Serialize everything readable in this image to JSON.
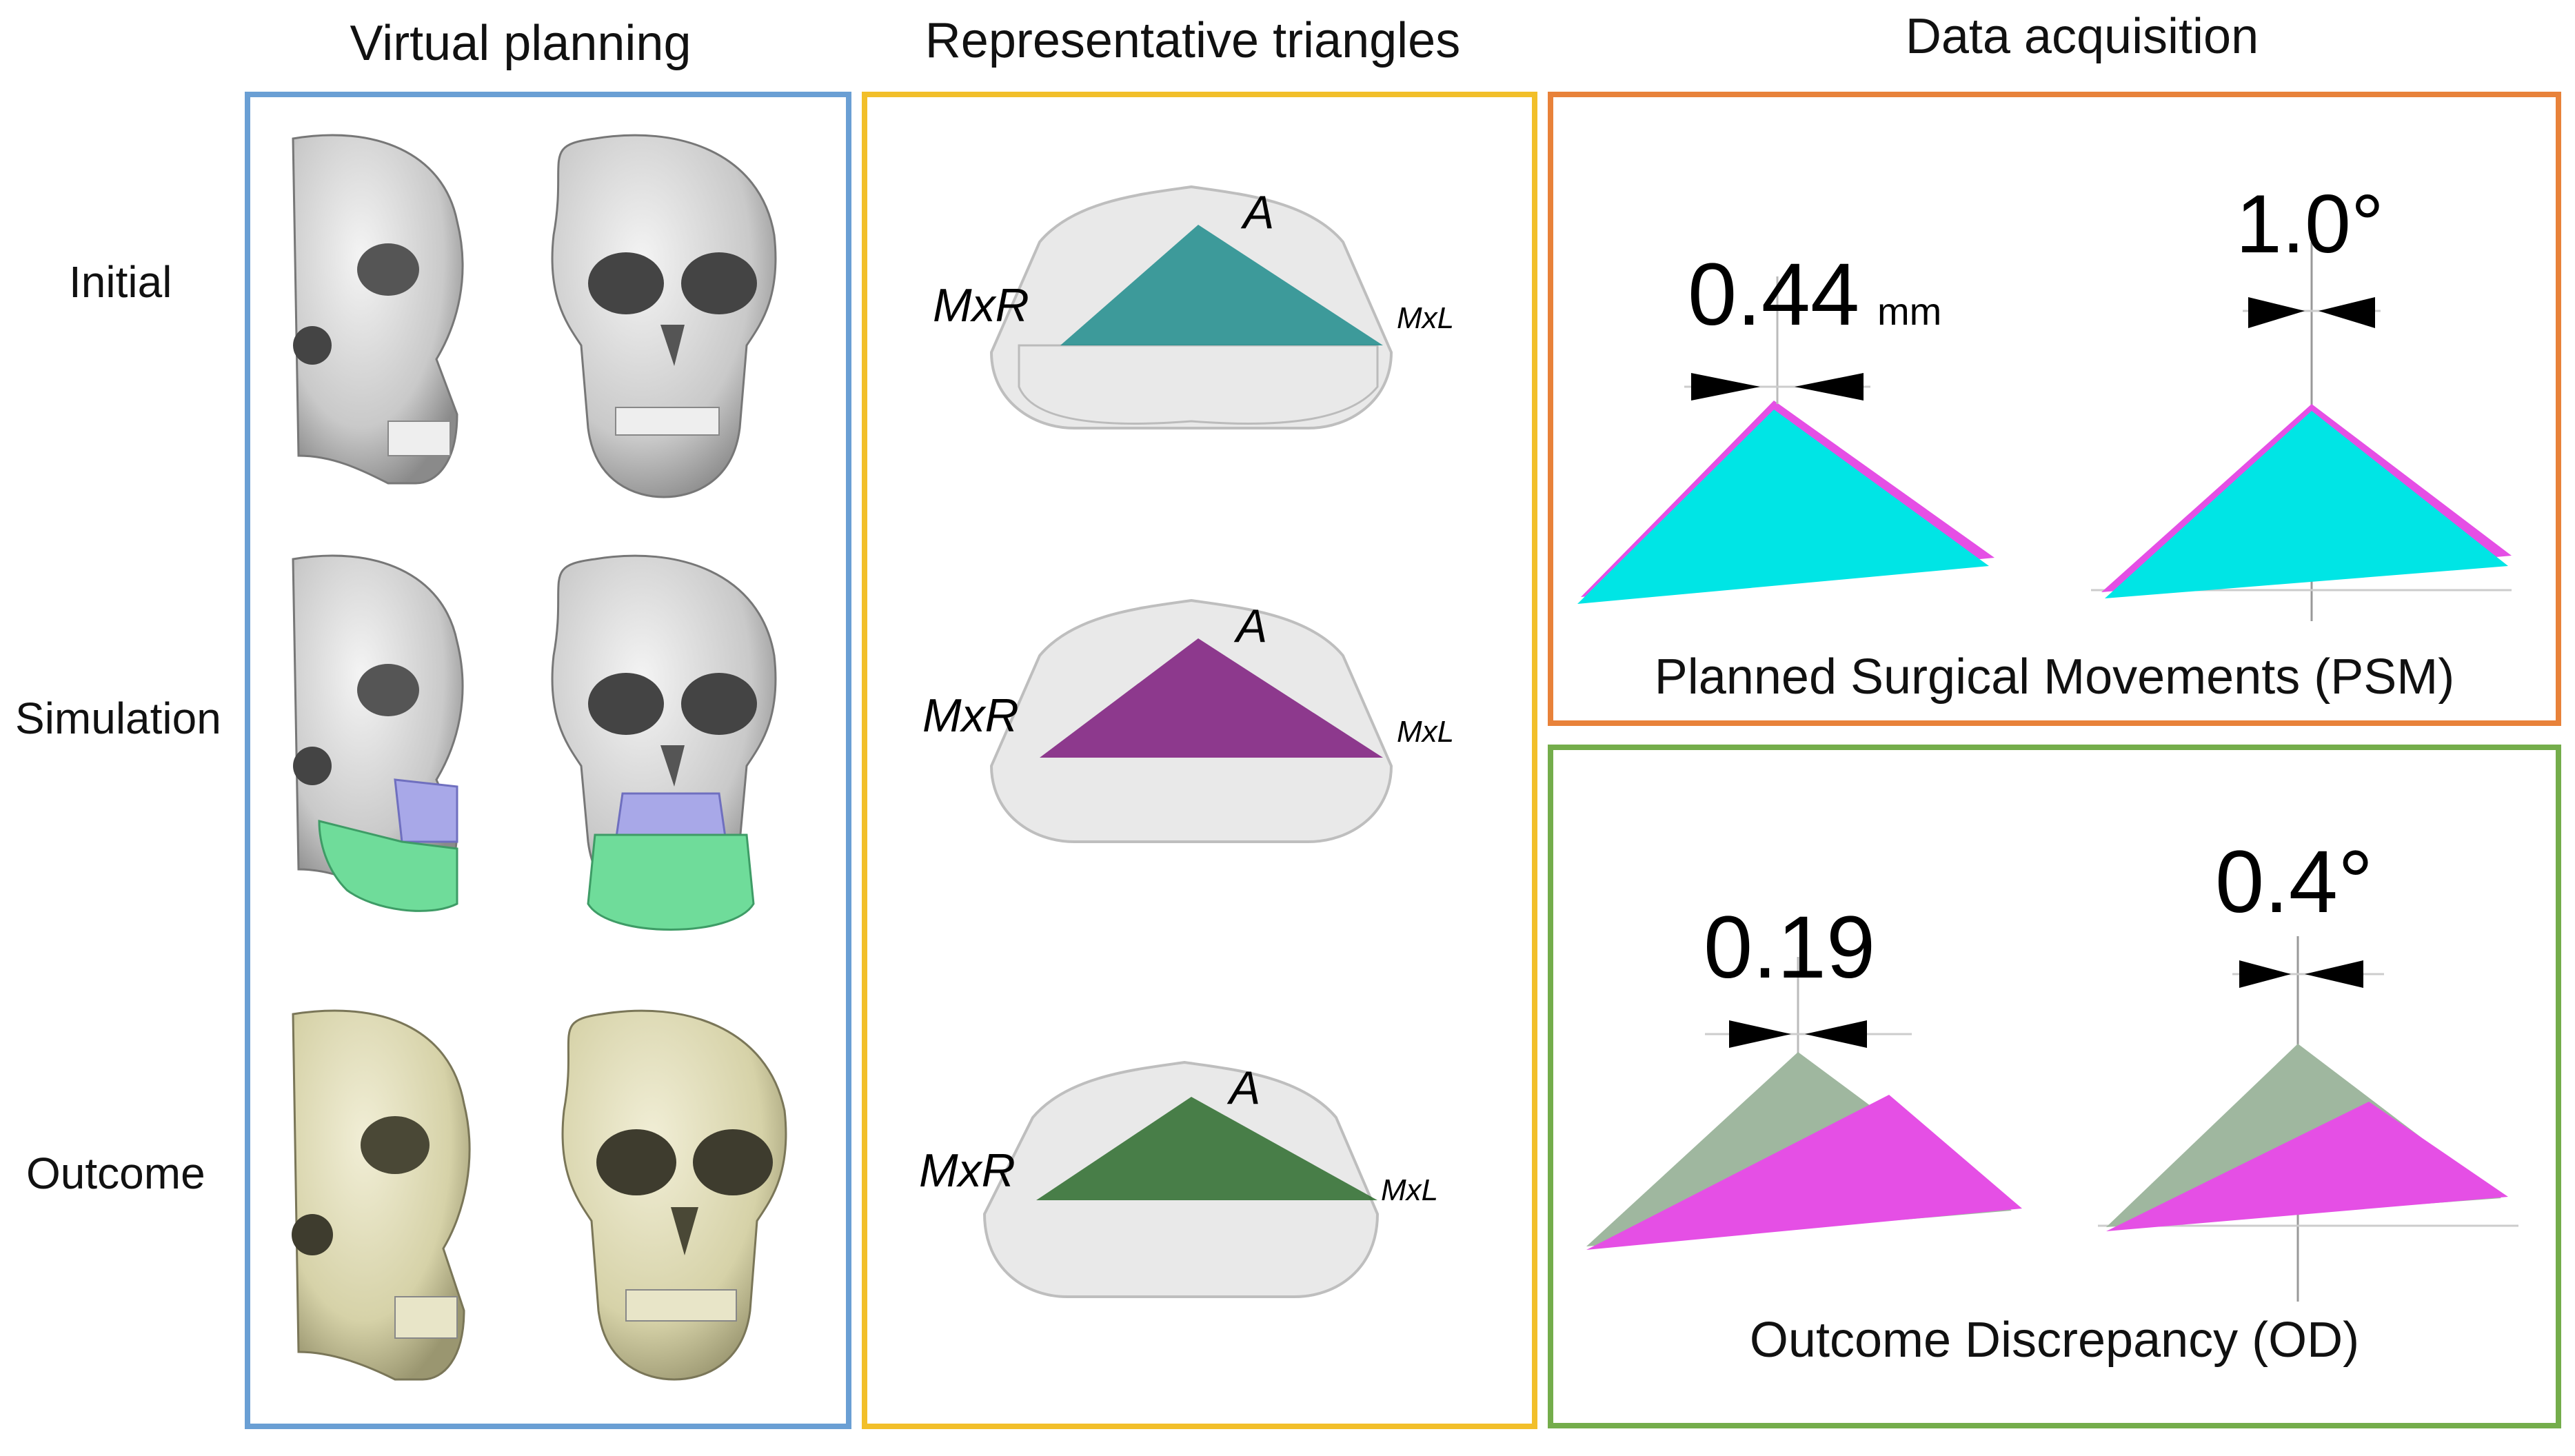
{
  "columns": {
    "virtual_planning": "Virtual planning",
    "representative_triangles": "Representative triangles",
    "data_acquisition": "Data acquisition"
  },
  "rows": {
    "initial": "Initial",
    "simulation": "Simulation",
    "outcome": "Outcome"
  },
  "landmarks": {
    "left_point": "MxR",
    "apex": "A",
    "right_point": "MxL"
  },
  "psm": {
    "caption": "Planned Surgical Movements (PSM)",
    "translation_value": "0.44",
    "translation_unit": "mm",
    "rotation_value": "1.0°"
  },
  "od": {
    "caption": "Outcome Discrepancy (OD)",
    "translation_value": "0.19",
    "rotation_value": "0.4°"
  },
  "colors": {
    "virtual_planning_border": "#6a9fd4",
    "triangles_border": "#f2bf2a",
    "psm_border": "#e8823a",
    "od_border": "#74ad4b",
    "cyan": "#00e5e5",
    "magenta": "#e54fe5",
    "teal_triangle": "#1f8c8c",
    "purple_triangle": "#7d1a7d",
    "green_triangle": "#2c6b2c",
    "sage": "#9fb79f",
    "skull_white": "#d8d8d8",
    "skull_yellow": "#dcd8b2",
    "maxilla_blue": "#a8a8e8",
    "mandible_green": "#6fdc9a"
  }
}
